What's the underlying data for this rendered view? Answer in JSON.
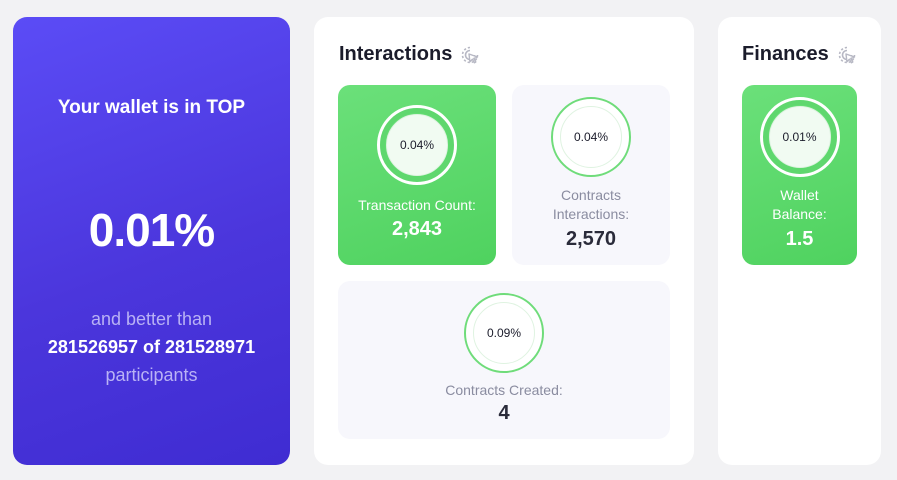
{
  "rank": {
    "title": "Your wallet is in TOP",
    "value": "0.01%",
    "line1": "and better than",
    "line2": "281526957 of 281528971",
    "line3": "participants"
  },
  "interactions": {
    "title": "Interactions",
    "icon": "cursor-click-icon",
    "tiles": [
      {
        "percent": "0.04%",
        "label": "Transaction Count:",
        "value": "2,843",
        "style": "green"
      },
      {
        "percent": "0.04%",
        "label_line1": "Contracts",
        "label_line2": "Interactions:",
        "value": "2,570",
        "style": "light"
      },
      {
        "percent": "0.09%",
        "label": "Contracts Created:",
        "value": "4",
        "style": "light"
      }
    ]
  },
  "finances": {
    "title": "Finances",
    "icon": "cursor-click-icon",
    "tiles": [
      {
        "percent": "0.01%",
        "label_line1": "Wallet",
        "label_line2": "Balance:",
        "value": "1.5",
        "style": "green"
      }
    ]
  },
  "colors": {
    "rank_gradient_start": "#5b4cf6",
    "rank_gradient_end": "#3f2cd2",
    "accent_green": "#52d462",
    "tile_light": "#f7f7fc"
  }
}
